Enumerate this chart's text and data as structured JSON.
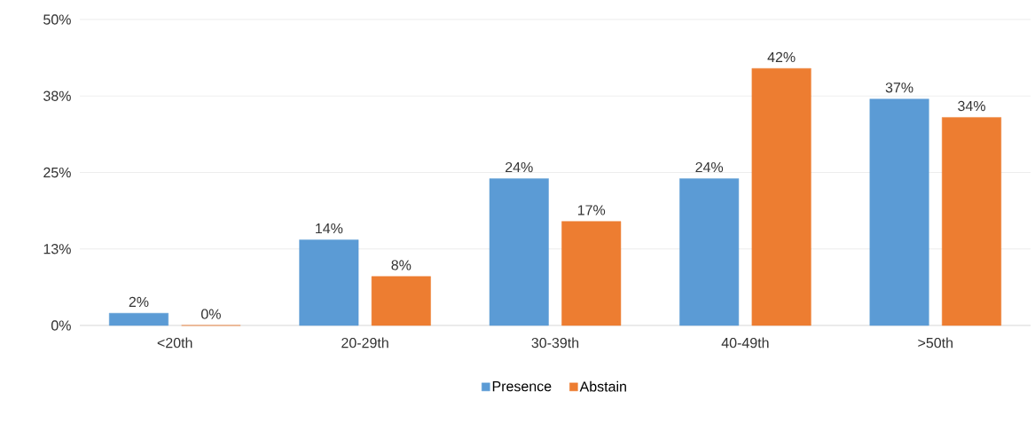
{
  "chart_data": {
    "type": "bar",
    "categories": [
      "<20th",
      "20-29th",
      "30-39th",
      "40-49th",
      ">50th"
    ],
    "series": [
      {
        "name": "Presence",
        "color": "#5b9bd5",
        "values": [
          2,
          14,
          24,
          24,
          37
        ],
        "value_labels": [
          "2%",
          "14%",
          "24%",
          "24%",
          "37%"
        ]
      },
      {
        "name": "Abstain",
        "color": "#ed7d31",
        "values": [
          0,
          8,
          17,
          42,
          34
        ],
        "value_labels": [
          "0%",
          "8%",
          "17%",
          "42%",
          "34%"
        ]
      }
    ],
    "ylim": [
      0,
      50
    ],
    "yticks": [
      {
        "value": 0,
        "label": "0%"
      },
      {
        "value": 12.5,
        "label": "13%"
      },
      {
        "value": 25,
        "label": "25%"
      },
      {
        "value": 37.5,
        "label": "38%"
      },
      {
        "value": 50,
        "label": "50%"
      }
    ],
    "grid": "y",
    "legend": "bottom"
  }
}
